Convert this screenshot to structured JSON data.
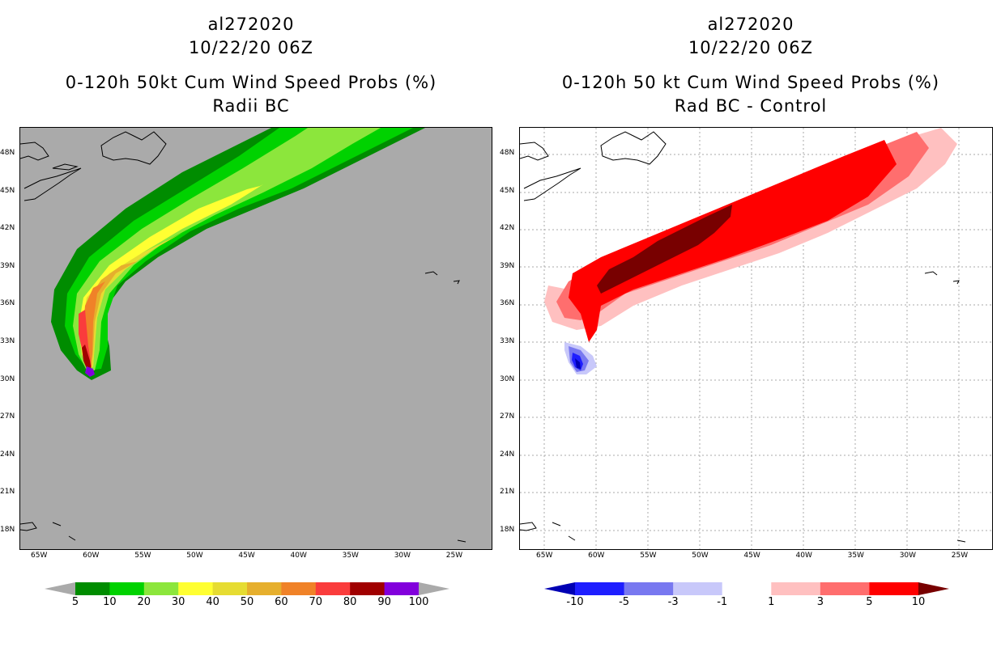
{
  "left_panel": {
    "storm_id": "al272020",
    "datetime": "10/22/20 06Z",
    "product": "0-120h 50kt Cum Wind Speed Probs (%)",
    "experiment": "Radii BC",
    "background_color": "#aaaaaa",
    "colorbar": {
      "colors": [
        "#008c00",
        "#00d200",
        "#8ce63c",
        "#ffff32",
        "#e6dc32",
        "#e6af2d",
        "#f08228",
        "#fa3c3c",
        "#a00000",
        "#8200dc"
      ],
      "labels": [
        "5",
        "10",
        "20",
        "30",
        "40",
        "50",
        "60",
        "70",
        "80",
        "90",
        "100"
      ]
    }
  },
  "right_panel": {
    "storm_id": "al272020",
    "datetime": "10/22/20 06Z",
    "product": "0-120h 50 kt Cum Wind Speed Probs (%)",
    "experiment": "Rad BC - Control",
    "background_color": "#ffffff",
    "colorbar": {
      "colors": [
        "#0000b4",
        "#1e1eff",
        "#7878f0",
        "#c8c8fa",
        "#ffffff",
        "#ffc0c0",
        "#ff6e6e",
        "#ff0000",
        "#780000"
      ],
      "labels": [
        "-10",
        "-5",
        "-3",
        "-1",
        "1",
        "3",
        "5",
        "10"
      ]
    }
  },
  "map": {
    "lon_ticks": [
      "65W",
      "60W",
      "55W",
      "50W",
      "45W",
      "40W",
      "35W",
      "30W",
      "25W"
    ],
    "lat_ticks": [
      "48N",
      "45N",
      "42N",
      "39N",
      "36N",
      "33N",
      "30N",
      "27N",
      "24N",
      "21N",
      "18N"
    ]
  }
}
